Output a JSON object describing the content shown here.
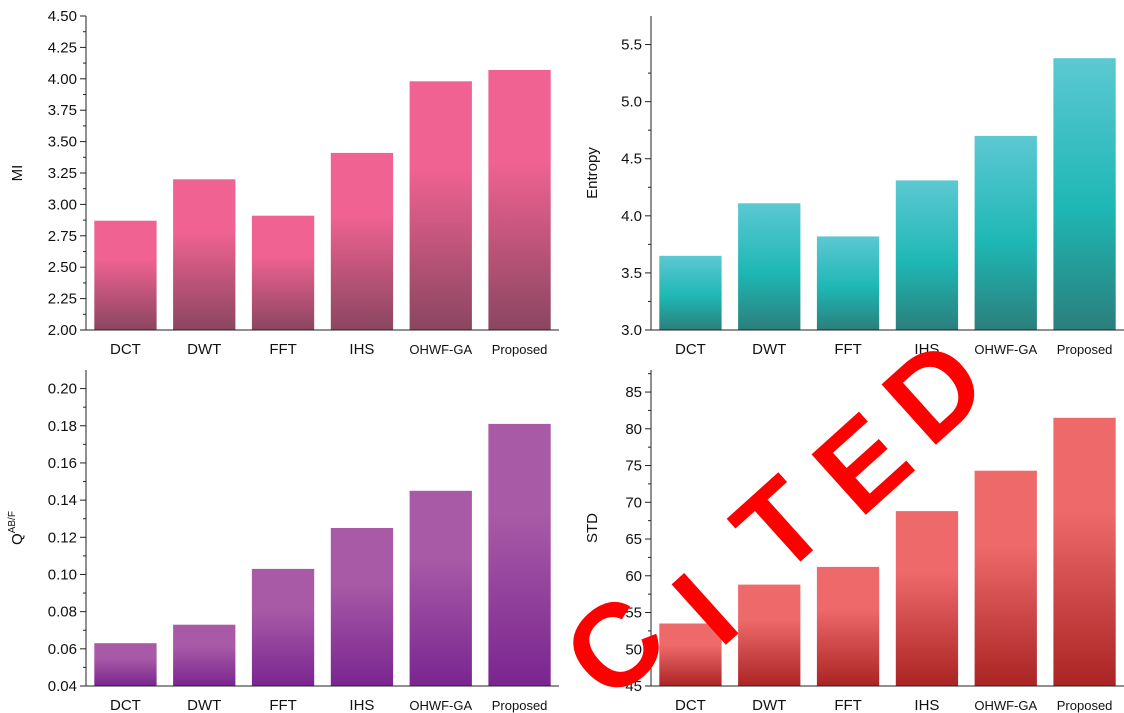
{
  "chart_data": [
    {
      "type": "bar",
      "categories": [
        "DCT",
        "DWT",
        "FFT",
        "IHS",
        "OHWF-GA",
        "Proposed"
      ],
      "values": [
        2.87,
        3.2,
        2.91,
        3.41,
        3.98,
        4.07
      ],
      "xlabel": "",
      "ylabel": "MI",
      "ylim": [
        2.0,
        4.5
      ],
      "yticks": [
        "2.00",
        "2.25",
        "2.50",
        "2.75",
        "3.00",
        "3.25",
        "3.50",
        "3.75",
        "4.00",
        "4.25",
        "4.50"
      ],
      "colors": {
        "top": "#f06292",
        "bottom": "#8a4660"
      }
    },
    {
      "type": "bar",
      "categories": [
        "DCT",
        "DWT",
        "FFT",
        "IHS",
        "OHWF-GA",
        "Proposed"
      ],
      "values": [
        3.65,
        4.11,
        3.82,
        4.31,
        4.7,
        5.38
      ],
      "xlabel": "",
      "ylabel": "Entropy",
      "ylim": [
        3.0,
        5.75
      ],
      "yticks": [
        "3.0",
        "3.5",
        "4.0",
        "4.5",
        "5.0",
        "5.5"
      ],
      "colors": {
        "top": "#5cc8d2",
        "mid": "#1eb7b4",
        "bottom": "#2b7f7c"
      }
    },
    {
      "type": "bar",
      "categories": [
        "DCT",
        "DWT",
        "FFT",
        "IHS",
        "OHWF-GA",
        "Proposed"
      ],
      "values": [
        0.063,
        0.073,
        0.103,
        0.125,
        0.145,
        0.181
      ],
      "xlabel": "",
      "ylabel": "Q",
      "ylabel_sup": "AB/F",
      "ylim": [
        0.04,
        0.21
      ],
      "yticks": [
        "0.04",
        "0.06",
        "0.08",
        "0.10",
        "0.12",
        "0.14",
        "0.16",
        "0.18",
        "0.20"
      ],
      "colors": {
        "top": "#a85aa6",
        "bottom": "#7a2590"
      }
    },
    {
      "type": "bar",
      "categories": [
        "DCT",
        "DWT",
        "FFT",
        "IHS",
        "OHWF-GA",
        "Proposed"
      ],
      "values": [
        53.5,
        58.8,
        61.2,
        68.8,
        74.3,
        81.5
      ],
      "xlabel": "",
      "ylabel": "STD",
      "ylim": [
        45,
        88
      ],
      "yticks": [
        "45",
        "50",
        "55",
        "60",
        "65",
        "70",
        "75",
        "80",
        "85"
      ],
      "colors": {
        "top": "#ee6a6a",
        "bottom": "#aa2424"
      }
    }
  ],
  "watermark": {
    "text": "CITED",
    "color": "#ff0000"
  }
}
